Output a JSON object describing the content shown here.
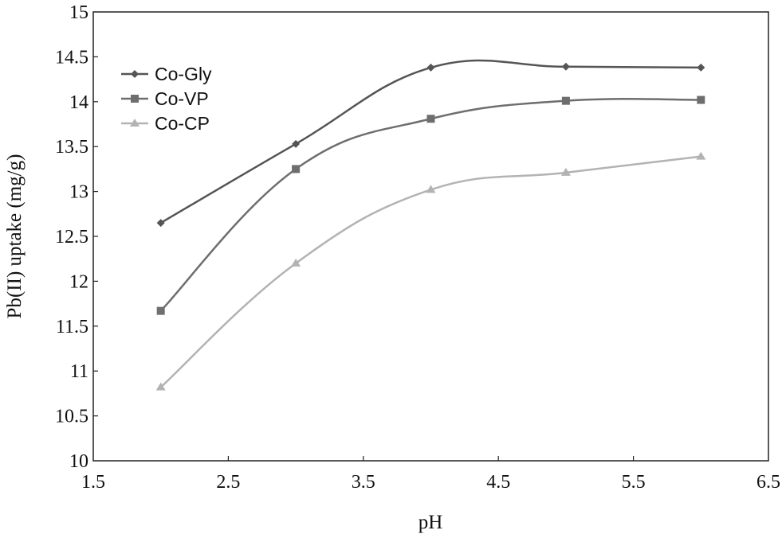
{
  "chart_data": {
    "type": "line",
    "xlabel": "pH",
    "ylabel": "Pb(II) uptake  (mg/g)",
    "xlim": [
      1.5,
      6.5
    ],
    "ylim": [
      10,
      15
    ],
    "xticks": [
      "1.5",
      "2.5",
      "3.5",
      "4.5",
      "5.5",
      "6.5"
    ],
    "yticks": [
      "10",
      "10.5",
      "11",
      "11.5",
      "12",
      "12.5",
      "13",
      "13.5",
      "14",
      "14.5",
      "15"
    ],
    "grid": false,
    "legend_position": "top-left",
    "series": [
      {
        "name": "Co-Gly",
        "marker": "diamond",
        "color": "#555555",
        "x": [
          2,
          3,
          4,
          5,
          6
        ],
        "y": [
          12.65,
          13.53,
          14.38,
          14.39,
          14.38
        ]
      },
      {
        "name": "Co-VP",
        "marker": "square",
        "color": "#6e6e6e",
        "x": [
          2,
          3,
          4,
          5,
          6
        ],
        "y": [
          11.67,
          13.25,
          13.81,
          14.01,
          14.02
        ]
      },
      {
        "name": "Co-CP",
        "marker": "triangle",
        "color": "#b3b3b3",
        "x": [
          2,
          3,
          4,
          5,
          6
        ],
        "y": [
          10.82,
          12.2,
          13.02,
          13.21,
          13.39
        ]
      }
    ]
  }
}
